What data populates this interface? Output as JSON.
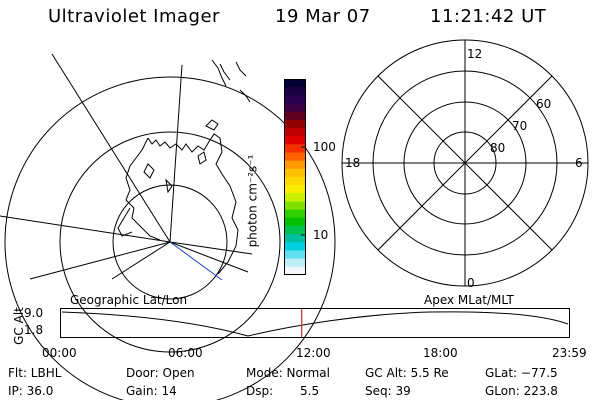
{
  "header": {
    "instrument": "Ultraviolet Imager",
    "date": "19 Mar 07",
    "time": "11:21:42 UT"
  },
  "colorbar": {
    "unit_label": "photon cm⁻²s⁻¹",
    "ticks": [
      "100",
      "10"
    ],
    "colors": [
      "#000033",
      "#1a0040",
      "#2a0050",
      "#3a0040",
      "#600020",
      "#900000",
      "#c00000",
      "#e00000",
      "#f43000",
      "#ff6000",
      "#ff9a00",
      "#ffc000",
      "#ffd800",
      "#f6f000",
      "#c8f000",
      "#80e000",
      "#30d000",
      "#00c000",
      "#00c050",
      "#00c0a0",
      "#00d0e0",
      "#60e0f0",
      "#c0eef8",
      "#f4f8fc"
    ]
  },
  "polar_plot": {
    "mlt_labels": {
      "top": "12",
      "bottom": "0",
      "left": "18",
      "right": "6"
    },
    "lat_labels": [
      "60",
      "70",
      "80"
    ]
  },
  "altitude_panel": {
    "left_label": "Geographic Lat/Lon",
    "right_label": "Apex MLat/MLT",
    "y_label": "GC Alt",
    "y_ticks": [
      "9.0",
      "1.8"
    ],
    "x_ticks": [
      "00:00",
      "06:00",
      "12:00",
      "18:00",
      "23:59"
    ],
    "current_time_hours": 11.36
  },
  "status": {
    "filter": "Flt: LBHL",
    "door": "Door: Open",
    "mode": "Mode: Normal",
    "gc_alt": "GC Alt: 5.5 Re",
    "glat": "GLat: −77.5",
    "ip": "IP: 36.0",
    "gain": "Gain: 14",
    "dsp_label": "Dsp:",
    "dsp_value": "5.5",
    "seq": "Seq: 39",
    "glon": "GLon: 223.8"
  }
}
